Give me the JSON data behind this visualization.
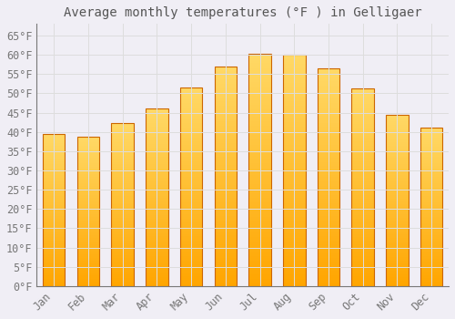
{
  "title": "Average monthly temperatures (°F ) in Gelligaer",
  "months": [
    "Jan",
    "Feb",
    "Mar",
    "Apr",
    "May",
    "Jun",
    "Jul",
    "Aug",
    "Sep",
    "Oct",
    "Nov",
    "Dec"
  ],
  "values": [
    39.5,
    38.8,
    42.3,
    46.0,
    51.5,
    57.0,
    60.2,
    60.0,
    56.5,
    51.3,
    44.5,
    41.0
  ],
  "bar_color_top": "#FFD966",
  "bar_color_bottom": "#FFA500",
  "bar_edge_color": "#CC6600",
  "background_color": "#F0EEF5",
  "grid_color": "#DDDDDD",
  "text_color": "#777777",
  "title_color": "#555555",
  "ylim": [
    0,
    68
  ],
  "yticks": [
    0,
    5,
    10,
    15,
    20,
    25,
    30,
    35,
    40,
    45,
    50,
    55,
    60,
    65
  ],
  "title_fontsize": 10,
  "tick_fontsize": 8.5,
  "font_family": "monospace",
  "bar_width": 0.65
}
